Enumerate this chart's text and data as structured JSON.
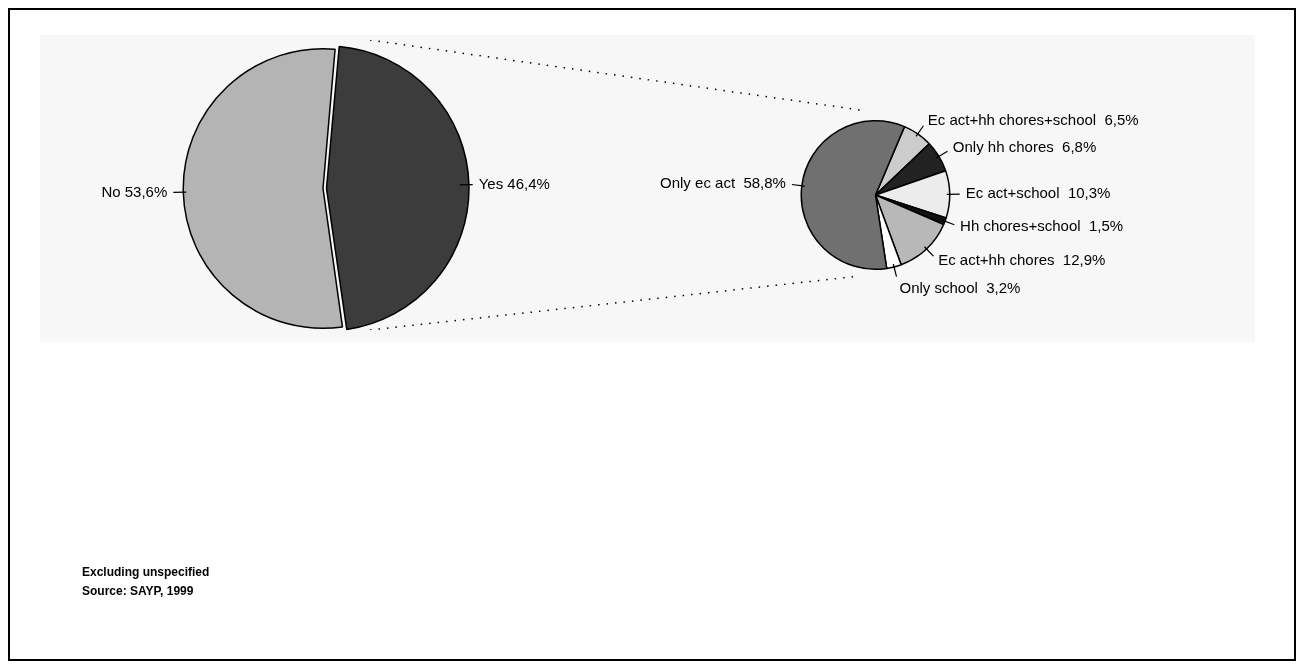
{
  "chart_data": [
    {
      "type": "pie",
      "categories": [
        "No",
        "Yes"
      ],
      "values": [
        53.6,
        46.4
      ],
      "colors": [
        "#b4b4b4",
        "#3c3c3c"
      ],
      "value_labels": [
        "53,6%",
        "46,4%"
      ],
      "annotations": [
        "Excluding unspecified",
        "Source: SAYP, 1999"
      ]
    },
    {
      "type": "pie",
      "categories": [
        "Ec act+hh chores+school",
        "Only hh chores",
        "Ec act+school",
        "Hh chores+school",
        "Ec act+hh chores",
        "Only school",
        "Only ec act"
      ],
      "values": [
        6.5,
        6.8,
        10.3,
        1.5,
        12.9,
        3.2,
        58.8
      ],
      "colors": [
        "#cccccc",
        "#222222",
        "#ececec",
        "#111111",
        "#b8b8b8",
        "#ffffff",
        "#707070"
      ],
      "value_labels": [
        "6,5%",
        "6,8%",
        "10,3%",
        "1,5%",
        "12,9%",
        "3,2%",
        "58,8%"
      ]
    }
  ]
}
